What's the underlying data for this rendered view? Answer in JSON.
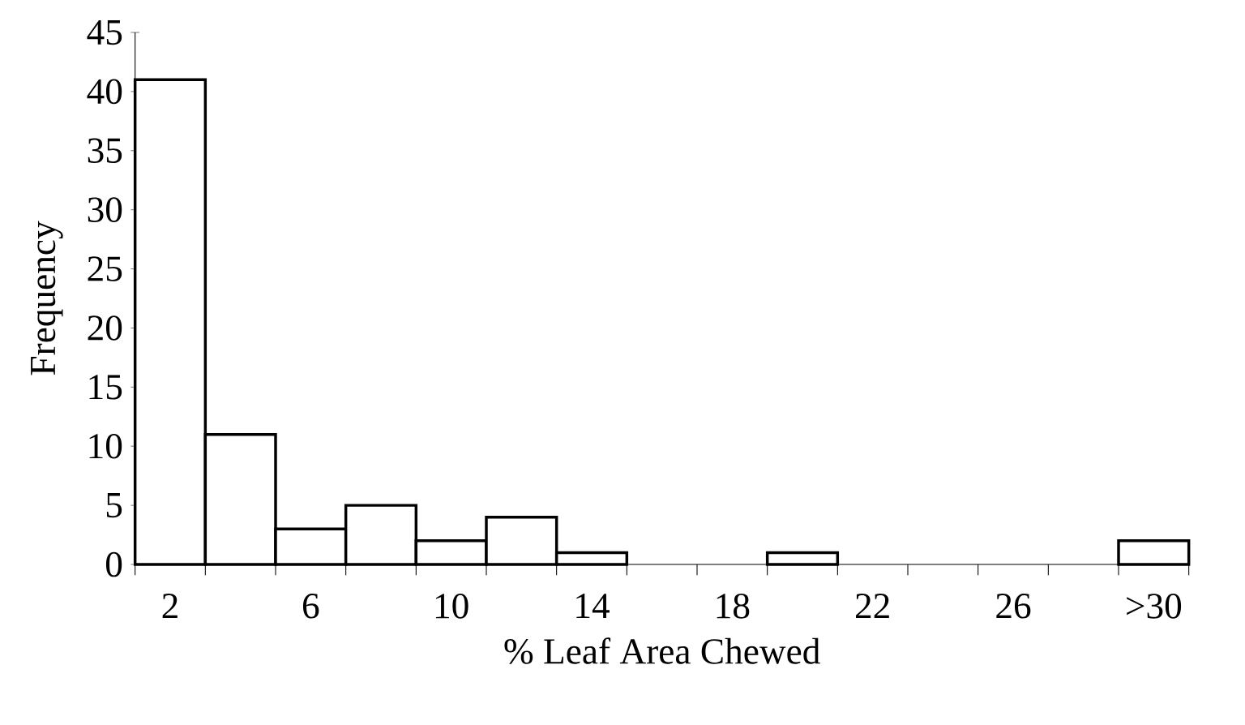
{
  "chart_data": {
    "type": "bar",
    "xlabel": "% Leaf Area Chewed",
    "ylabel": "Frequency",
    "categories": [
      "2",
      null,
      "6",
      null,
      "10",
      null,
      "14",
      null,
      "18",
      null,
      "22",
      null,
      "26",
      null,
      ">30"
    ],
    "values": [
      41,
      11,
      3,
      5,
      2,
      4,
      1,
      0,
      0,
      1,
      0,
      0,
      0,
      0,
      2
    ],
    "color": "#ffffff",
    "ylim": [
      0,
      45
    ],
    "yticks": [
      0,
      5,
      10,
      15,
      20,
      25,
      30,
      35,
      40,
      45
    ],
    "grid": false
  }
}
